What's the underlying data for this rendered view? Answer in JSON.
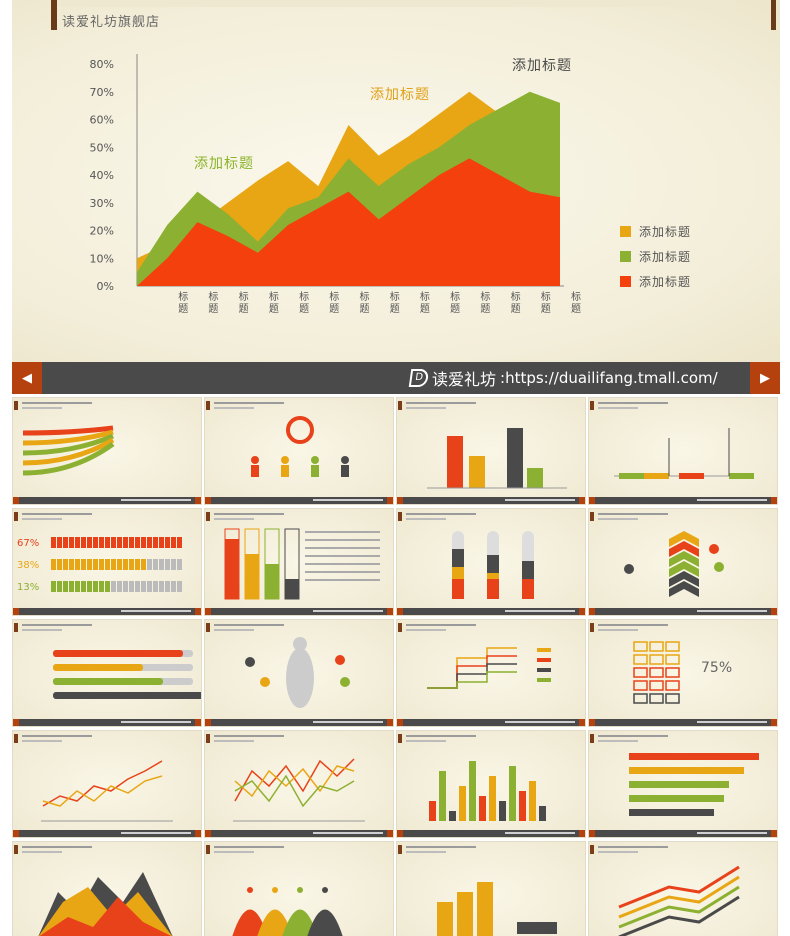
{
  "hero": {
    "subtitle": "读爱礼坊旗舰店",
    "chart_data": {
      "type": "area",
      "title": "",
      "y_ticks": [
        "80%",
        "70%",
        "60%",
        "50%",
        "40%",
        "30%",
        "20%",
        "10%",
        "0%"
      ],
      "ylim": [
        0,
        80
      ],
      "x_tick_label": "标题",
      "x_count": 15,
      "annotations": [
        {
          "text": "添加标题",
          "color": "#4a4a4a"
        },
        {
          "text": "添加标题",
          "color": "#e0a11a"
        },
        {
          "text": "添加标题",
          "color": "#8ab42a"
        }
      ],
      "series": [
        {
          "name": "添加标题",
          "color": "#e8a614",
          "values": [
            10,
            15,
            22,
            30,
            38,
            45,
            36,
            58,
            47,
            54,
            62,
            70,
            62,
            60,
            55
          ]
        },
        {
          "name": "添加标题",
          "color": "#8cb031",
          "values": [
            5,
            22,
            34,
            26,
            16,
            28,
            32,
            46,
            36,
            44,
            50,
            58,
            64,
            70,
            66
          ]
        },
        {
          "name": "添加标题",
          "color": "#f3400d",
          "values": [
            0,
            10,
            23,
            18,
            12,
            22,
            28,
            34,
            24,
            32,
            40,
            46,
            40,
            34,
            32
          ]
        }
      ],
      "legend": [
        {
          "label": "添加标题",
          "color": "#e8a614"
        },
        {
          "label": "添加标题",
          "color": "#8cb031"
        },
        {
          "label": "添加标题",
          "color": "#f3400d"
        }
      ]
    }
  },
  "navbar": {
    "prev_icon": "◀",
    "next_icon": "▶",
    "logo_mark": "D",
    "brand": "读爱礼坊",
    "url": ":https://duailifang.tmall.com/"
  },
  "thumbnails": [
    {
      "kind": "arrows"
    },
    {
      "kind": "people"
    },
    {
      "kind": "bars-dark"
    },
    {
      "kind": "timeline"
    },
    {
      "kind": "pct-bars",
      "labels": [
        "67%",
        "38%",
        "13%"
      ]
    },
    {
      "kind": "hatched-bars"
    },
    {
      "kind": "tubes"
    },
    {
      "kind": "chevrons"
    },
    {
      "kind": "progress"
    },
    {
      "kind": "body"
    },
    {
      "kind": "steps"
    },
    {
      "kind": "grid75",
      "label": "75%"
    },
    {
      "kind": "line2"
    },
    {
      "kind": "line3"
    },
    {
      "kind": "bars-multi"
    },
    {
      "kind": "hbars"
    },
    {
      "kind": "mountain"
    },
    {
      "kind": "peaks"
    },
    {
      "kind": "blocks"
    },
    {
      "kind": "trend"
    }
  ],
  "colors": {
    "red": "#e8421a",
    "orange": "#e8a614",
    "green": "#8cb031",
    "gray": "#4a4a4a",
    "brown": "#7a3f19"
  }
}
